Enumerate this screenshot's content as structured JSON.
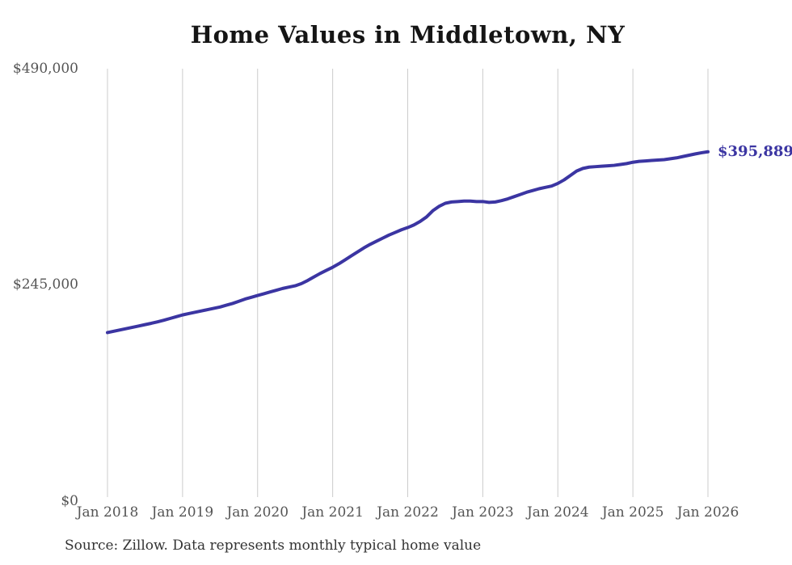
{
  "chart": {
    "title": "Home Values in Middletown, NY",
    "end_label": "$395,889",
    "source": "Source: Zillow. Data represents monthly typical home value"
  },
  "chart_data": {
    "type": "line",
    "title": "Home Values in Middletown, NY",
    "x_start": "2018-01",
    "x_interval": "monthly",
    "x_tick_labels": [
      "Jan 2018",
      "Jan 2019",
      "Jan 2020",
      "Jan 2021",
      "Jan 2022",
      "Jan 2023",
      "Jan 2024",
      "Jan 2025",
      "Jan 2026"
    ],
    "y_ticks": [
      {
        "label": "$0",
        "value": 0
      },
      {
        "label": "$245,000",
        "value": 245000
      },
      {
        "label": "$490,000",
        "value": 490000
      }
    ],
    "ylim": [
      0,
      490000
    ],
    "grid": "vertical-only",
    "legend": "none",
    "series": [
      {
        "name": "Monthly typical home value",
        "values": [
          191000,
          192500,
          194000,
          195500,
          197000,
          198500,
          200000,
          201500,
          203200,
          205000,
          207000,
          209000,
          211000,
          212500,
          214000,
          215500,
          217000,
          218500,
          220000,
          222000,
          224000,
          226500,
          229000,
          231000,
          233000,
          235000,
          237000,
          239000,
          241000,
          242500,
          244000,
          246500,
          250000,
          254000,
          258000,
          261500,
          265000,
          269000,
          273500,
          278000,
          282500,
          287000,
          291000,
          294500,
          298000,
          301500,
          304500,
          307500,
          310000,
          313000,
          317000,
          322000,
          329000,
          334000,
          337500,
          339000,
          339500,
          340000,
          340000,
          339500,
          339500,
          338500,
          339000,
          340500,
          342500,
          345000,
          347500,
          350000,
          352000,
          354000,
          355500,
          357000,
          360000,
          364000,
          369000,
          374000,
          377000,
          378500,
          379000,
          379500,
          380000,
          380500,
          381500,
          382500,
          384000,
          385000,
          385500,
          386000,
          386500,
          387000,
          388000,
          389000,
          390500,
          392000,
          393500,
          394800,
          395889
        ]
      }
    ],
    "annotations": [
      {
        "text": "$395,889",
        "x": "2026-01",
        "value": 395889
      }
    ],
    "colors": {
      "line": "#3b35a2",
      "end_label": "#3b35a2",
      "grid": "#cccccc",
      "axis_text": "#555555",
      "title": "#151515",
      "source": "#333333"
    }
  }
}
